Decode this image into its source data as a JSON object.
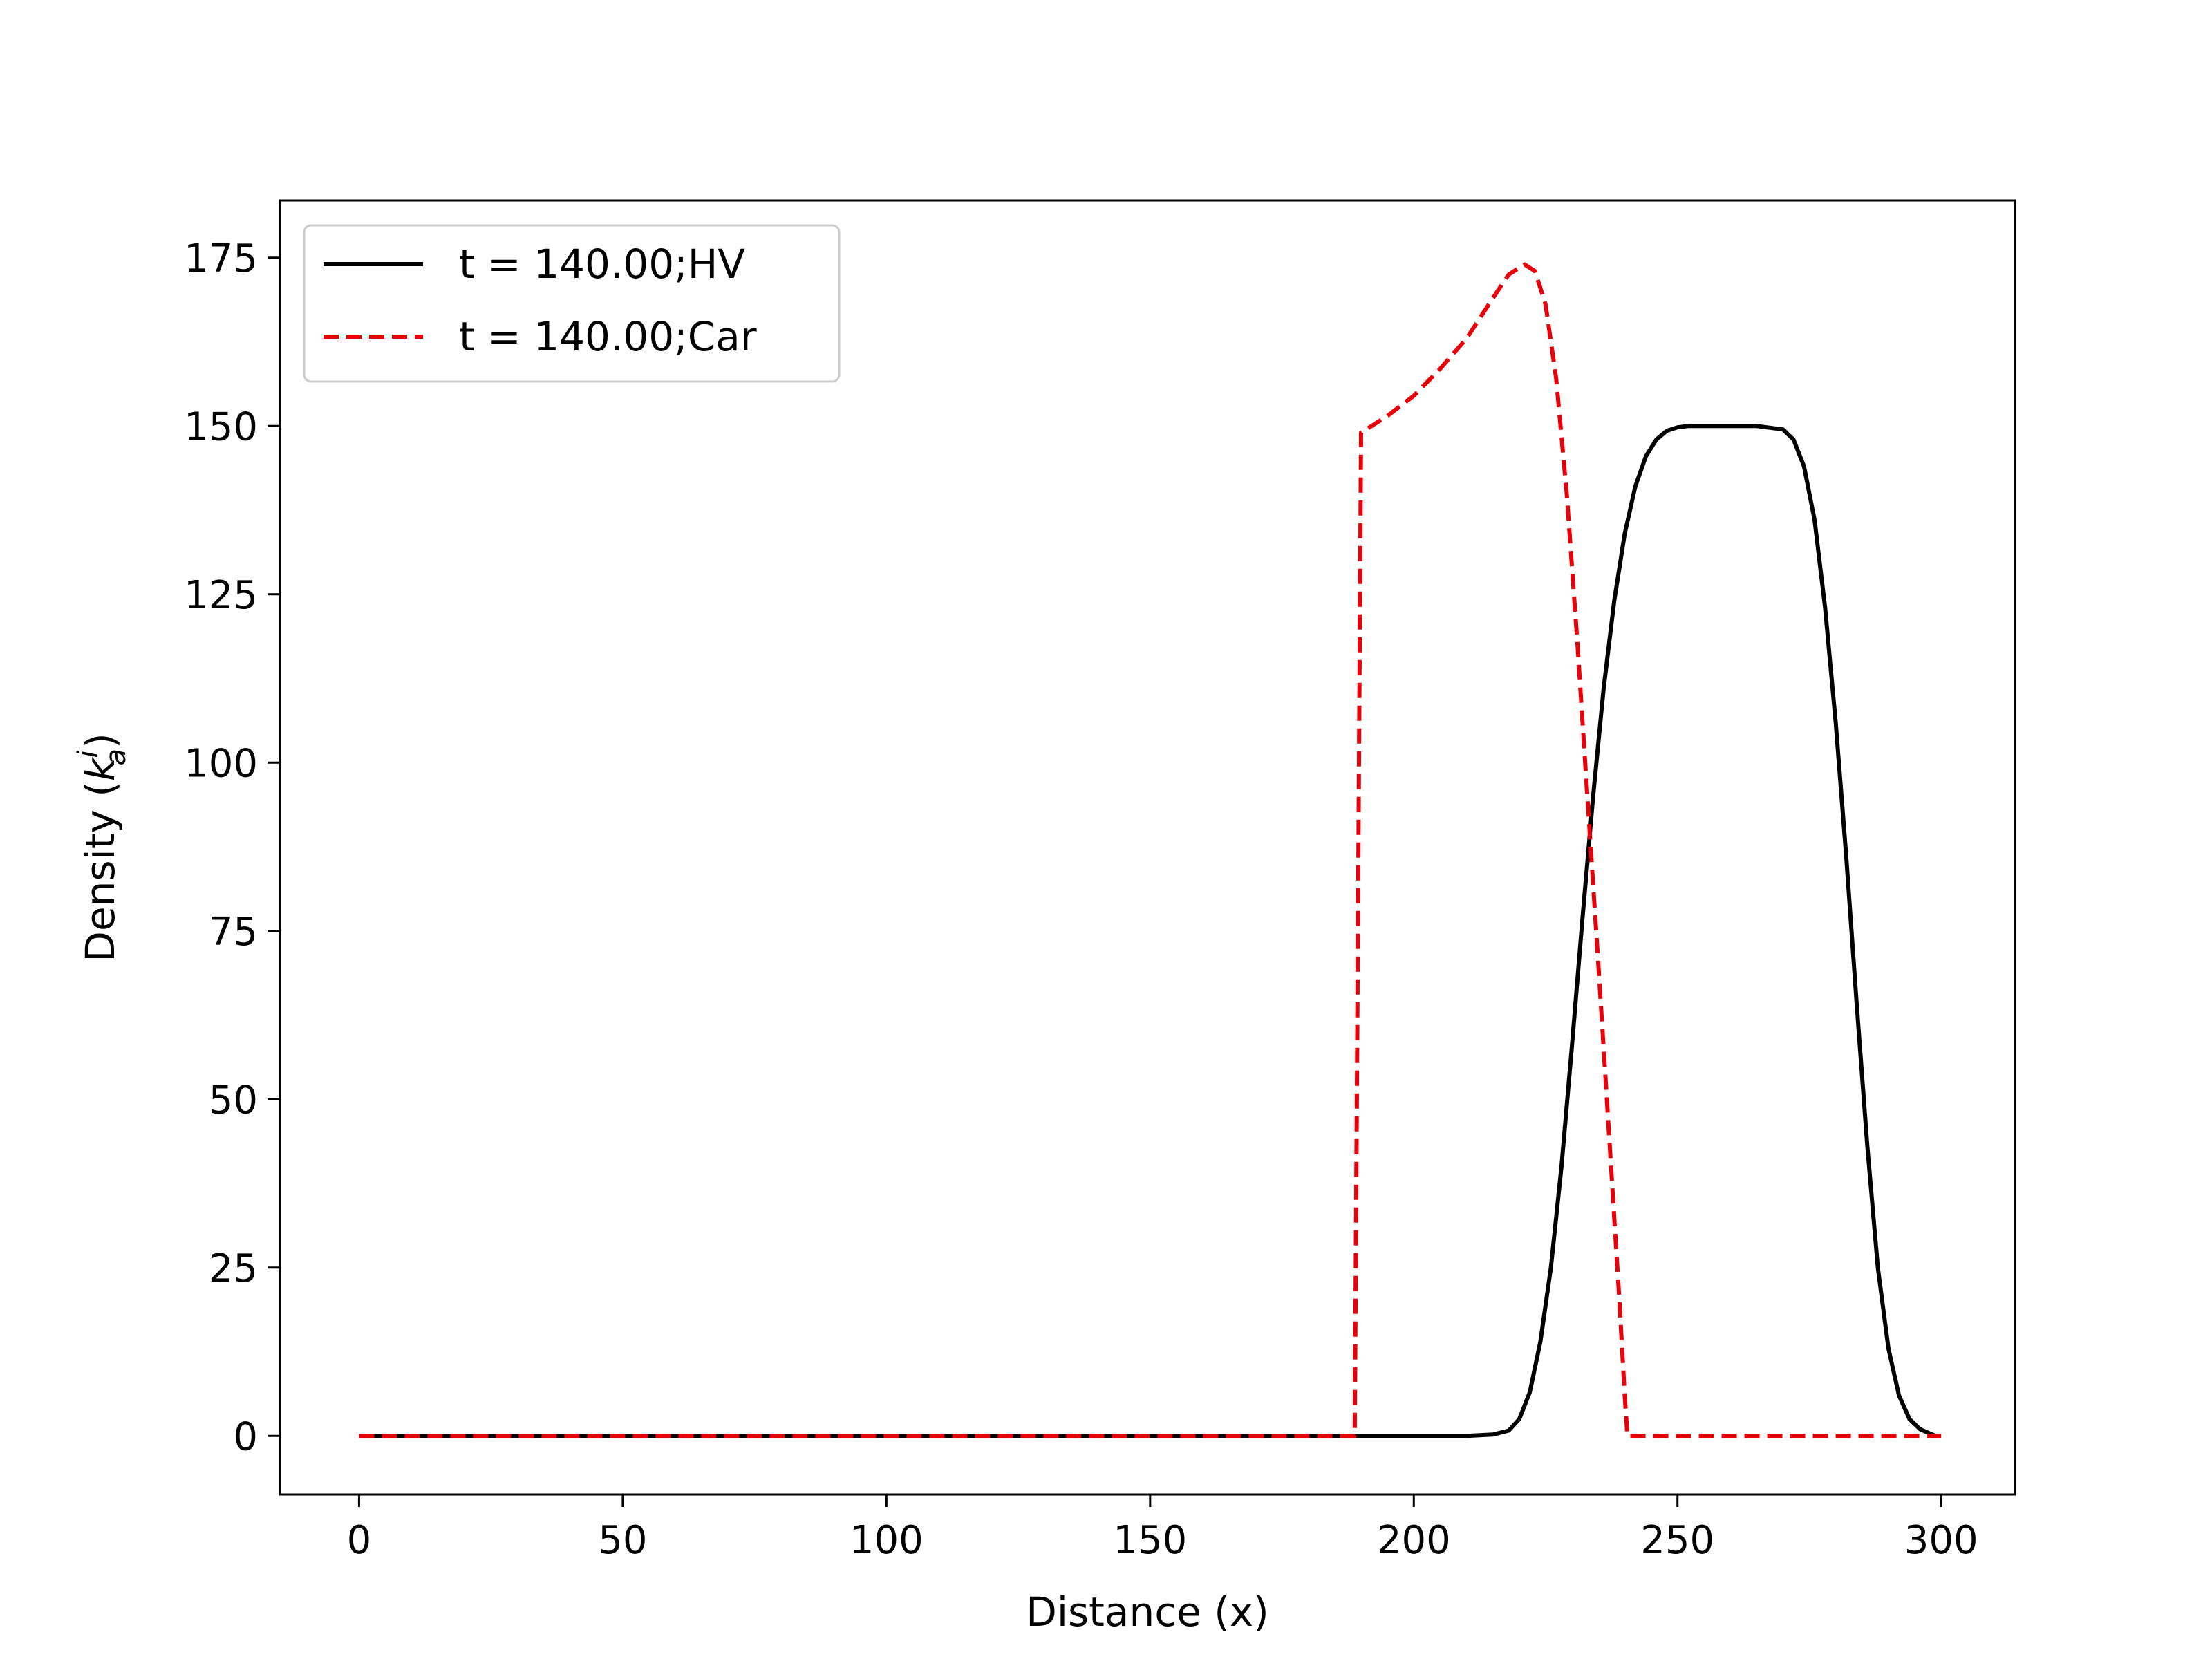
{
  "chart_data": {
    "type": "line",
    "title": "",
    "xlabel": "Distance (x)",
    "ylabel": "Density (k_a^i)",
    "ylabel_parts": {
      "prefix": "Density (",
      "base": "k",
      "sup": "i",
      "sub": "a",
      "suffix": ")"
    },
    "xlim": [
      -15,
      314
    ],
    "ylim": [
      -8.7,
      183.5
    ],
    "xticks": [
      0,
      50,
      100,
      150,
      200,
      250,
      300
    ],
    "yticks": [
      0,
      25,
      50,
      75,
      100,
      125,
      150,
      175
    ],
    "grid": false,
    "legend_position": "upper-left",
    "series": [
      {
        "name": "t = 140.00;HV",
        "color": "#000000",
        "style": "solid",
        "x": [
          0,
          100,
          200,
          210,
          215,
          218,
          220,
          222,
          224,
          226,
          228,
          230,
          232,
          234,
          236,
          238,
          240,
          242,
          244,
          246,
          248,
          250,
          252,
          255,
          260,
          265,
          270,
          272,
          274,
          276,
          278,
          280,
          282,
          284,
          286,
          288,
          290,
          292,
          294,
          296,
          298,
          299
        ],
        "y": [
          0,
          0,
          0,
          0,
          0.2,
          0.8,
          2.5,
          6.5,
          14,
          25,
          40,
          58,
          77,
          95,
          111,
          124,
          134,
          141,
          145.5,
          148,
          149.3,
          149.8,
          150,
          150,
          150,
          150,
          149.5,
          148,
          144,
          136,
          123,
          106,
          86,
          64,
          43,
          25,
          13,
          6,
          2.5,
          1,
          0.3,
          0
        ]
      },
      {
        "name": "t = 140.00;Car",
        "color": "#e8000b",
        "style": "dashed",
        "x": [
          0,
          100,
          188,
          188.8,
          190,
          195,
          200,
          205,
          210,
          215,
          218,
          221,
          223,
          225,
          227,
          229,
          231,
          233,
          235,
          237,
          239,
          240,
          240.5,
          250,
          300
        ],
        "y": [
          0,
          0,
          0,
          0,
          149,
          151.5,
          154.5,
          158.5,
          163,
          169,
          172.5,
          174,
          173,
          168,
          157,
          140,
          118,
          94,
          70,
          45,
          20,
          6,
          0,
          0,
          0
        ]
      }
    ]
  }
}
